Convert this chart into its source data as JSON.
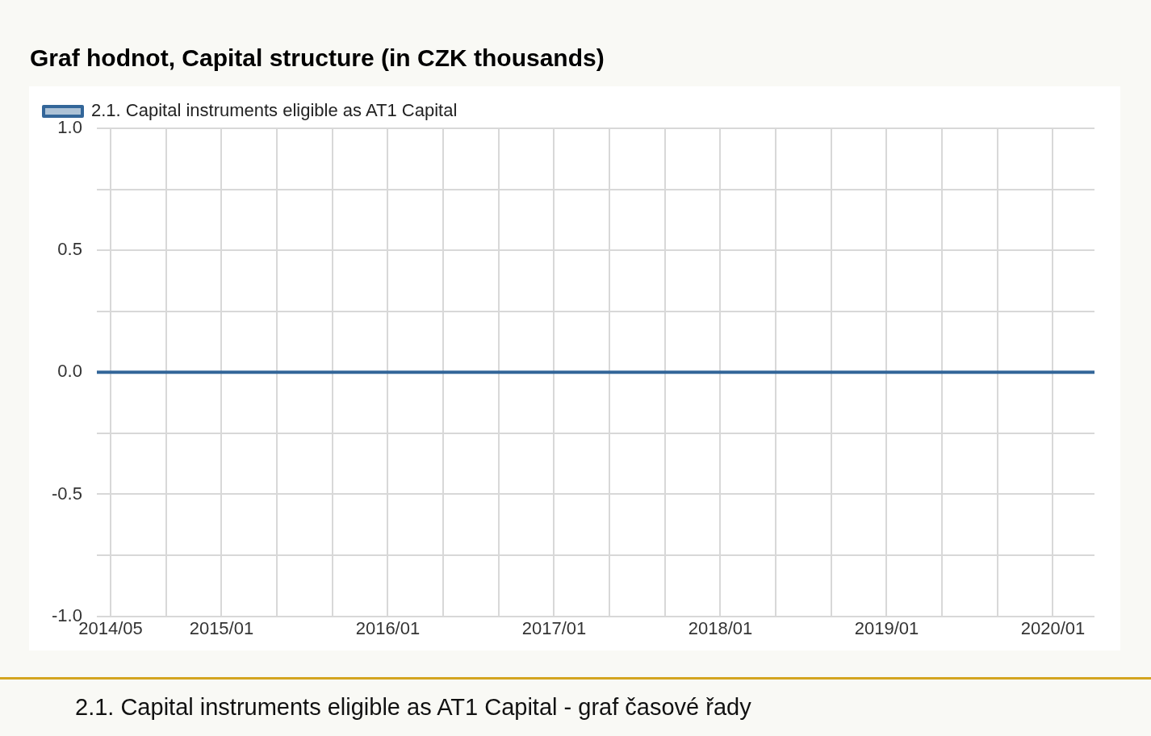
{
  "chart_data": {
    "type": "line",
    "title": "Graf hodnot, Capital structure (in CZK thousands)",
    "x": [
      "2014-04",
      "2014-07",
      "2014-10",
      "2015-01",
      "2015-04",
      "2015-07",
      "2015-10",
      "2016-01",
      "2016-04",
      "2016-07",
      "2016-10",
      "2017-01",
      "2017-04",
      "2017-07",
      "2017-10",
      "2018-01",
      "2018-04",
      "2018-07",
      "2018-10",
      "2019-01",
      "2019-04",
      "2019-07",
      "2019-10",
      "2020-01",
      "2020-04"
    ],
    "series": [
      {
        "name": "2.1. Capital instruments eligible as AT1 Capital",
        "color": "#336699",
        "values": [
          0,
          0,
          0,
          0,
          0,
          0,
          0,
          0,
          0,
          0,
          0,
          0,
          0,
          0,
          0,
          0,
          0,
          0,
          0,
          0,
          0,
          0,
          0,
          0,
          0
        ]
      }
    ],
    "xlim": [
      "2014-04",
      "2020-04"
    ],
    "xticks": [
      {
        "value": "2014-05",
        "label": "2014/05"
      },
      {
        "value": "2014-09",
        "label": null
      },
      {
        "value": "2015-01",
        "label": "2015/01"
      },
      {
        "value": "2015-05",
        "label": null
      },
      {
        "value": "2015-09",
        "label": null
      },
      {
        "value": "2016-01",
        "label": "2016/01"
      },
      {
        "value": "2016-05",
        "label": null
      },
      {
        "value": "2016-09",
        "label": null
      },
      {
        "value": "2017-01",
        "label": "2017/01"
      },
      {
        "value": "2017-05",
        "label": null
      },
      {
        "value": "2017-09",
        "label": null
      },
      {
        "value": "2018-01",
        "label": "2018/01"
      },
      {
        "value": "2018-05",
        "label": null
      },
      {
        "value": "2018-09",
        "label": null
      },
      {
        "value": "2019-01",
        "label": "2019/01"
      },
      {
        "value": "2019-05",
        "label": null
      },
      {
        "value": "2019-09",
        "label": null
      },
      {
        "value": "2020-01",
        "label": "2020/01"
      }
    ],
    "ylim": [
      -1,
      1
    ],
    "yticks": [
      {
        "value": -1,
        "label": "-1.0"
      },
      {
        "value": -0.75,
        "label": null
      },
      {
        "value": -0.5,
        "label": "-0.5"
      },
      {
        "value": -0.25,
        "label": null
      },
      {
        "value": 0,
        "label": "0.0"
      },
      {
        "value": 0.25,
        "label": null
      },
      {
        "value": 0.5,
        "label": "0.5"
      },
      {
        "value": 0.75,
        "label": null
      },
      {
        "value": 1,
        "label": "1.0"
      }
    ],
    "grid": true,
    "legend": "top left",
    "marker": "none",
    "line_style": "solid",
    "annotations": [
      "2.1. Capital instruments eligible as AT1 Capital - graf časové řady"
    ]
  }
}
